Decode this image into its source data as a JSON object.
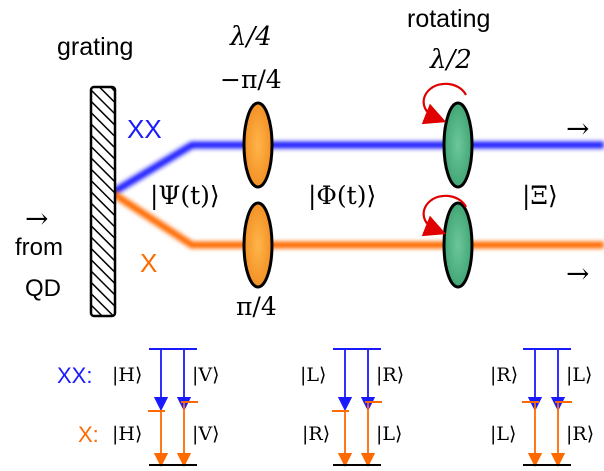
{
  "labels": {
    "grating": "grating",
    "rotating": "rotating",
    "from": "from",
    "qd": "QD",
    "in_arrow": "→",
    "out_arrow_top": "→",
    "out_arrow_bottom": "→",
    "xx": "XX",
    "x": "X",
    "quarter_wave": "λ/4",
    "half_wave": "λ/2",
    "angle_top": "−π/4",
    "angle_bottom": "π/4",
    "psi": "|Ψ(t)⟩",
    "phi": "|Φ(t)⟩",
    "xi": "|Ξ⟩"
  },
  "levels": {
    "xx_prefix": "XX:",
    "x_prefix": "X:",
    "g1": {
      "xx_left": "|H⟩",
      "xx_right": "|V⟩",
      "x_left": "|H⟩",
      "x_right": "|V⟩"
    },
    "g2": {
      "xx_left": "|L⟩",
      "xx_right": "|R⟩",
      "x_left": "|R⟩",
      "x_right": "|L⟩"
    },
    "g3": {
      "xx_left": "|R⟩",
      "xx_right": "|L⟩",
      "x_left": "|L⟩",
      "x_right": "|R⟩"
    }
  },
  "colors": {
    "xx": "#1a1aff",
    "x": "#ff6a00",
    "input": "#ff00ff",
    "quarter_wave_plate": "#f7962a",
    "half_wave_plate": "#3faa78",
    "rotation_arrow": "#e00000"
  }
}
